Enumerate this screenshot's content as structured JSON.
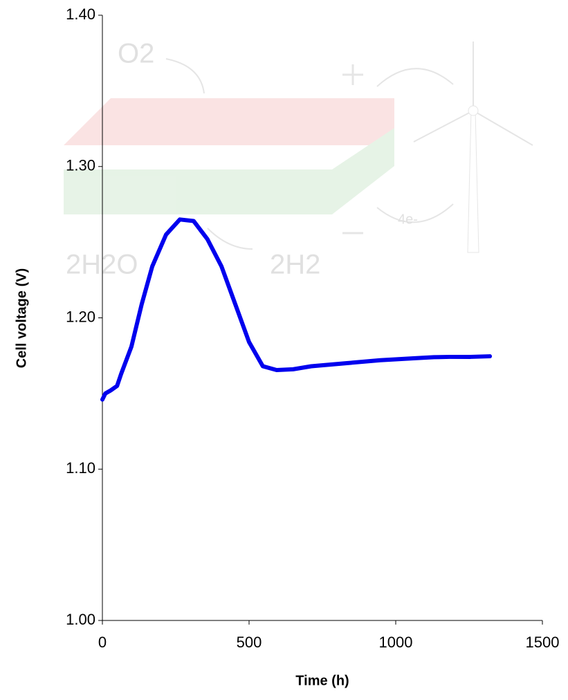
{
  "chart_data": {
    "type": "line",
    "x_label": "Time (h)",
    "y_label": "Cell voltage (V)",
    "x": [
      0,
      10,
      28,
      50,
      64,
      99,
      134,
      170,
      217,
      264,
      311,
      358,
      406,
      453,
      500,
      547,
      594,
      650,
      712,
      830,
      948,
      1066,
      1130,
      1184,
      1255,
      1321
    ],
    "series": [
      {
        "name": "Cell voltage",
        "color": "#0000ee",
        "values": [
          1.146,
          1.15,
          1.152,
          1.155,
          1.163,
          1.181,
          1.209,
          1.234,
          1.255,
          1.265,
          1.264,
          1.252,
          1.234,
          1.209,
          1.184,
          1.168,
          1.1655,
          1.166,
          1.168,
          1.17,
          1.172,
          1.1733,
          1.174,
          1.1742,
          1.1742,
          1.1746
        ]
      }
    ],
    "xlim": [
      0,
      1500
    ],
    "xticks": [
      0,
      500,
      1000,
      1500
    ],
    "ylim": [
      1.0,
      1.4
    ],
    "yticks": [
      {
        "value": 1.0,
        "label": "1.00"
      },
      {
        "value": 1.1,
        "label": "1.10"
      },
      {
        "value": 1.2,
        "label": "1.20"
      },
      {
        "value": 1.3,
        "label": "1.30"
      },
      {
        "value": 1.4,
        "label": "1.40"
      }
    ],
    "grid": false,
    "annotations": [
      "O2",
      "2H2O",
      "2H2",
      "4e-"
    ]
  }
}
